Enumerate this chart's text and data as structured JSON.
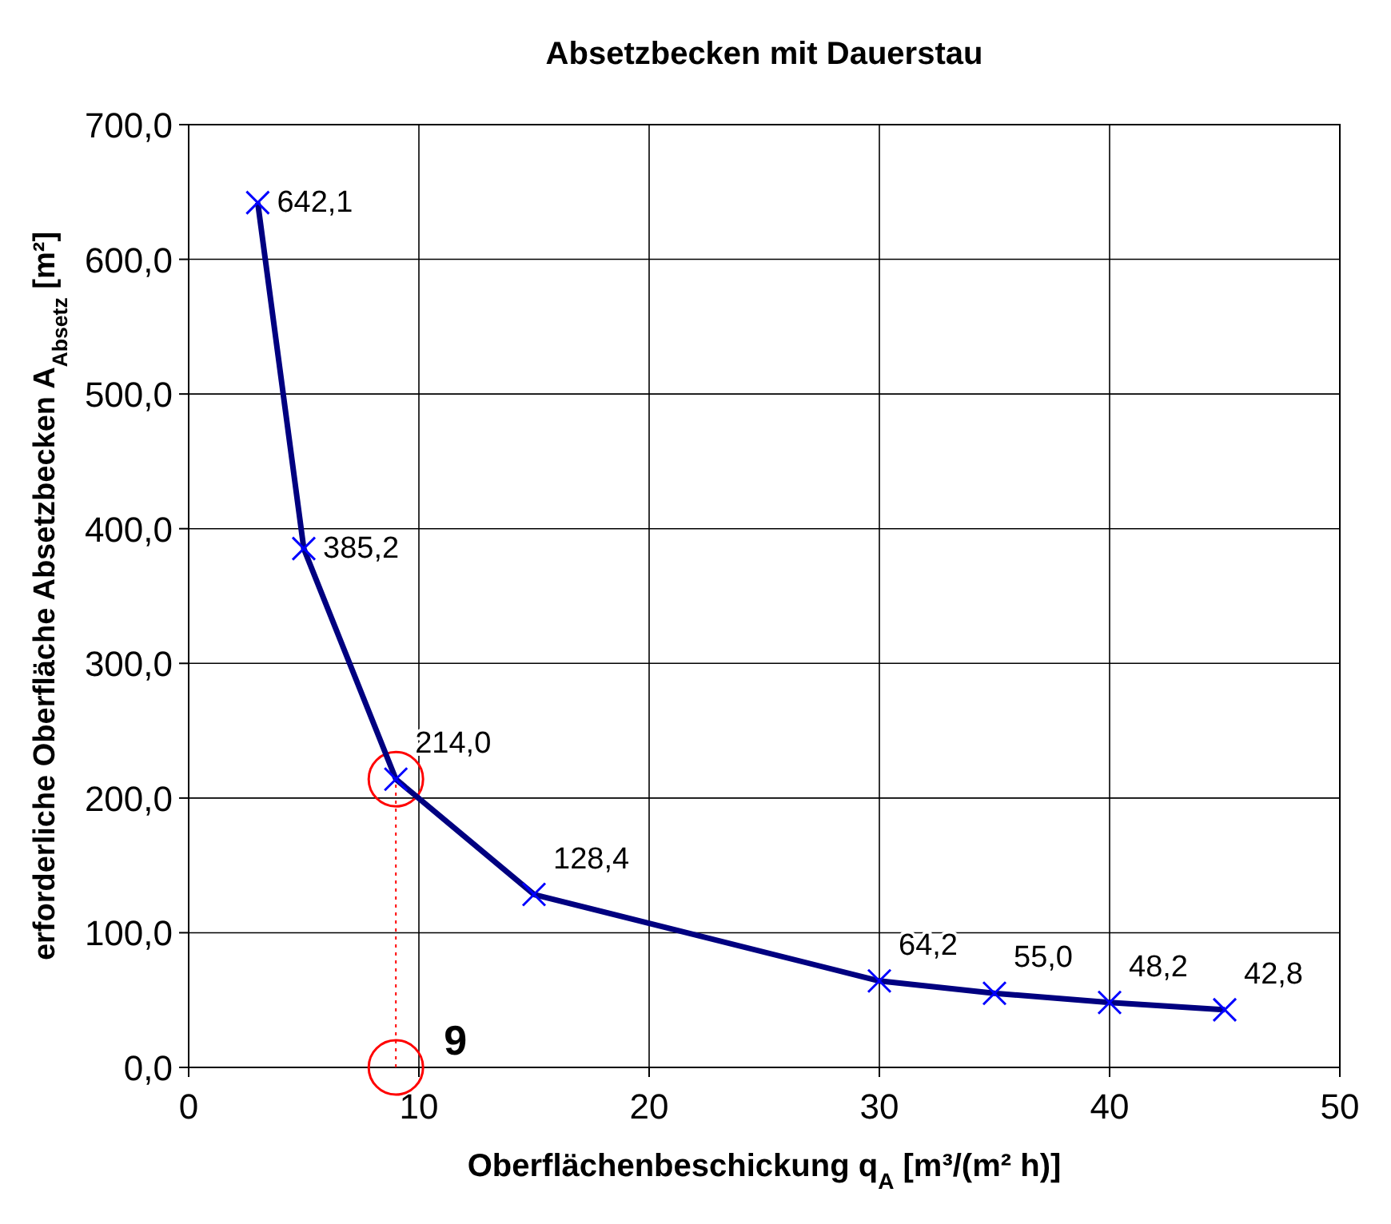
{
  "chart_data": {
    "type": "line",
    "title": "Absetzbecken mit Dauerstau",
    "xlabel": "Oberflächenbeschickung q$_{A}$ [m³/(m² h)]",
    "ylabel": "erforderliche Oberfläche Absetzbecken A$_{Absetz}$ [m²]",
    "x": [
      3,
      5,
      9,
      15,
      30,
      35,
      40,
      45
    ],
    "series": [
      {
        "color": "#000080",
        "values": [
          642.1,
          385.2,
          214.0,
          128.4,
          64.2,
          55.0,
          48.2,
          42.8
        ],
        "value_labels": [
          "642,1",
          "385,2",
          "214,0",
          "128,4",
          "64,2",
          "55,0",
          "48,2",
          "42,8"
        ]
      }
    ],
    "xlim": [
      0,
      50
    ],
    "xticks": [
      0,
      10,
      20,
      30,
      40,
      50
    ],
    "ylim": [
      0,
      700
    ],
    "yticks": [
      {
        "value": 0,
        "label": "0,0"
      },
      {
        "value": 100,
        "label": "100,0"
      },
      {
        "value": 200,
        "label": "200,0"
      },
      {
        "value": 300,
        "label": "300,0"
      },
      {
        "value": 400,
        "label": "400,0"
      },
      {
        "value": 500,
        "label": "500,0"
      },
      {
        "value": 600,
        "label": "600,0"
      },
      {
        "value": 700,
        "label": "700,0"
      }
    ],
    "grid": true,
    "marker": "cross",
    "line_style": "solid",
    "ref_lines": [
      {
        "axis": "x",
        "value": 9,
        "label": "9",
        "color": "#ff0000",
        "line_style": "dotted"
      }
    ]
  }
}
